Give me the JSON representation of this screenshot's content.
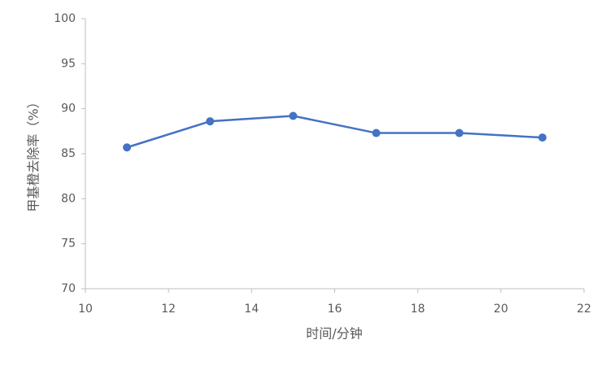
{
  "chart_data": {
    "type": "line",
    "x_label": "时间/分钟",
    "y_label": "甲基橙去除率（%）",
    "series": [
      {
        "color": "#4472c4",
        "x": [
          11,
          13,
          15,
          17,
          19,
          21
        ],
        "values": [
          85.7,
          88.6,
          89.2,
          87.3,
          87.3,
          86.8
        ]
      }
    ],
    "xlim": [
      10,
      22
    ],
    "xticks": [
      10,
      12,
      14,
      16,
      18,
      20,
      22
    ],
    "ylim": [
      70,
      100
    ],
    "yticks": [
      70,
      75,
      80,
      85,
      90,
      95,
      100
    ],
    "grid": false
  }
}
